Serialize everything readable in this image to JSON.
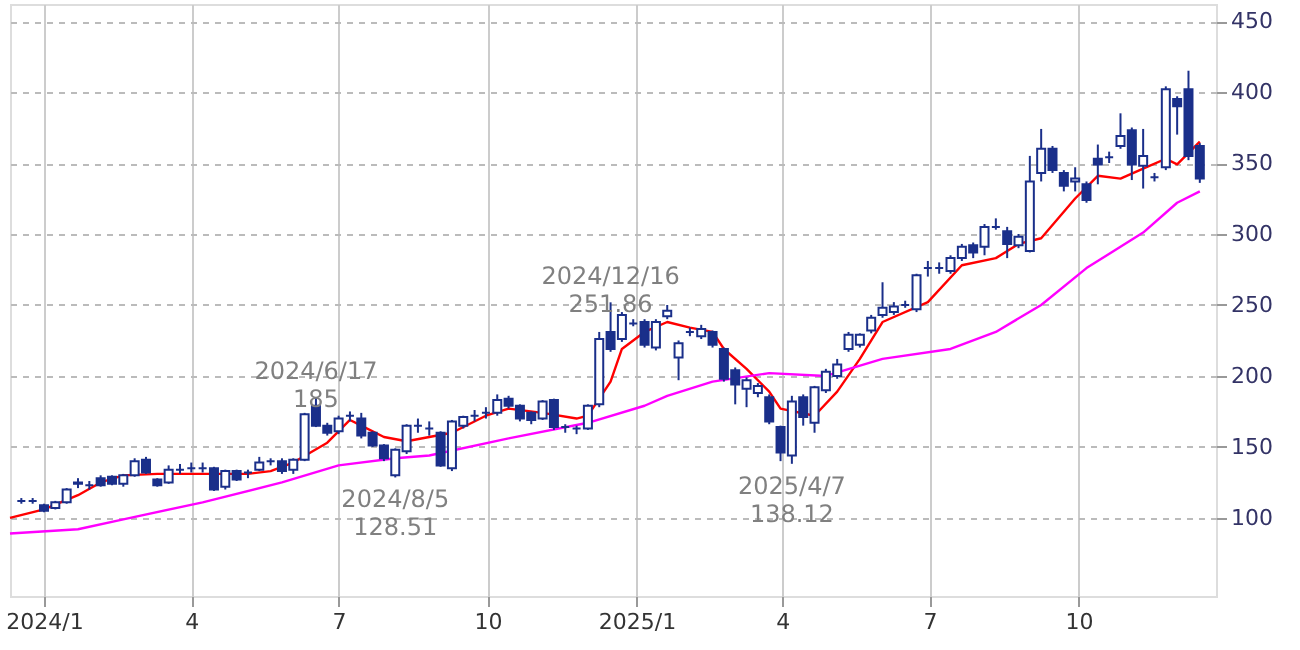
{
  "chart_data": {
    "type": "candlestick",
    "color": "#1a2f8a",
    "grid": true,
    "xlim": [
      "2023-12-11",
      "2025-12-25"
    ],
    "ylim": [
      45,
      462
    ],
    "xticks": [
      {
        "value": "2024-01-01",
        "label": "2024/1"
      },
      {
        "value": "2024-04-01",
        "label": "4"
      },
      {
        "value": "2024-07-01",
        "label": "7"
      },
      {
        "value": "2024-10-01",
        "label": "10"
      },
      {
        "value": "2025-01-01",
        "label": "2025/1"
      },
      {
        "value": "2025-04-01",
        "label": "4"
      },
      {
        "value": "2025-07-01",
        "label": "7"
      },
      {
        "value": "2025-10-01",
        "label": "10"
      }
    ],
    "yticks": [
      100,
      150,
      200,
      250,
      300,
      350,
      400,
      450
    ],
    "x": [
      "2023-12-18",
      "2023-12-25",
      "2024-01-01",
      "2024-01-08",
      "2024-01-15",
      "2024-01-22",
      "2024-01-29",
      "2024-02-05",
      "2024-02-12",
      "2024-02-19",
      "2024-02-26",
      "2024-03-04",
      "2024-03-11",
      "2024-03-18",
      "2024-03-25",
      "2024-04-01",
      "2024-04-08",
      "2024-04-15",
      "2024-04-22",
      "2024-04-29",
      "2024-05-06",
      "2024-05-13",
      "2024-05-20",
      "2024-05-27",
      "2024-06-03",
      "2024-06-10",
      "2024-06-17",
      "2024-06-24",
      "2024-07-01",
      "2024-07-08",
      "2024-07-15",
      "2024-07-22",
      "2024-07-29",
      "2024-08-05",
      "2024-08-12",
      "2024-08-19",
      "2024-08-26",
      "2024-09-02",
      "2024-09-09",
      "2024-09-16",
      "2024-09-23",
      "2024-09-30",
      "2024-10-07",
      "2024-10-14",
      "2024-10-21",
      "2024-10-28",
      "2024-11-04",
      "2024-11-11",
      "2024-11-18",
      "2024-11-25",
      "2024-12-02",
      "2024-12-09",
      "2024-12-16",
      "2024-12-23",
      "2024-12-30",
      "2025-01-06",
      "2025-01-13",
      "2025-01-20",
      "2025-01-27",
      "2025-02-03",
      "2025-02-10",
      "2025-02-17",
      "2025-02-24",
      "2025-03-03",
      "2025-03-10",
      "2025-03-17",
      "2025-03-24",
      "2025-03-31",
      "2025-04-07",
      "2025-04-14",
      "2025-04-21",
      "2025-04-28",
      "2025-05-05",
      "2025-05-12",
      "2025-05-19",
      "2025-05-26",
      "2025-06-02",
      "2025-06-09",
      "2025-06-16",
      "2025-06-23",
      "2025-06-30",
      "2025-07-07",
      "2025-07-14",
      "2025-07-21",
      "2025-07-28",
      "2025-08-04",
      "2025-08-11",
      "2025-08-18",
      "2025-08-25",
      "2025-09-01",
      "2025-09-08",
      "2025-09-15",
      "2025-09-22",
      "2025-09-29",
      "2025-10-06",
      "2025-10-13",
      "2025-10-20",
      "2025-10-27",
      "2025-11-03",
      "2025-11-10",
      "2025-11-17",
      "2025-11-24",
      "2025-12-01",
      "2025-12-08",
      "2025-12-15"
    ],
    "ohlc": [
      [
        112,
        114,
        110,
        112
      ],
      [
        112,
        114,
        110,
        112
      ],
      [
        109,
        110,
        104,
        105
      ],
      [
        107,
        112,
        106,
        111
      ],
      [
        111,
        121,
        110,
        120
      ],
      [
        124,
        128,
        121,
        125
      ],
      [
        123,
        126,
        120,
        123
      ],
      [
        128,
        130,
        122,
        123
      ],
      [
        129,
        130,
        123,
        124
      ],
      [
        124,
        131,
        122,
        130
      ],
      [
        130,
        142,
        129,
        140
      ],
      [
        141,
        143,
        131,
        132
      ],
      [
        127,
        128,
        122,
        123
      ],
      [
        125,
        137,
        124,
        134
      ],
      [
        134,
        138,
        131,
        134
      ],
      [
        135,
        139,
        132,
        135
      ],
      [
        135,
        139,
        132,
        135
      ],
      [
        135,
        136,
        119,
        120
      ],
      [
        122,
        134,
        120,
        133
      ],
      [
        133,
        134,
        126,
        127
      ],
      [
        132,
        134,
        128,
        132
      ],
      [
        134,
        143,
        133,
        139
      ],
      [
        140,
        142,
        137,
        140
      ],
      [
        140,
        142,
        131,
        133
      ],
      [
        134,
        142,
        131,
        141
      ],
      [
        141,
        174,
        140,
        173
      ],
      [
        179,
        185,
        164,
        165
      ],
      [
        165,
        167,
        158,
        160
      ],
      [
        161,
        172,
        159,
        170
      ],
      [
        172,
        175,
        168,
        172
      ],
      [
        170,
        174,
        156,
        158
      ],
      [
        160,
        161,
        150,
        151
      ],
      [
        151,
        152,
        140,
        142
      ],
      [
        130,
        149,
        128.51,
        148
      ],
      [
        147,
        166,
        145,
        165
      ],
      [
        165,
        170,
        160,
        165
      ],
      [
        163,
        168,
        158,
        163
      ],
      [
        160,
        161,
        136,
        137
      ],
      [
        135,
        169,
        133,
        168
      ],
      [
        165,
        172,
        163,
        171
      ],
      [
        172,
        176,
        168,
        172
      ],
      [
        174,
        178,
        170,
        174
      ],
      [
        174,
        187,
        172,
        183
      ],
      [
        184,
        186,
        177,
        179
      ],
      [
        179,
        180,
        168,
        170
      ],
      [
        174,
        175,
        166,
        169
      ],
      [
        170,
        183,
        169,
        182
      ],
      [
        183,
        184,
        162,
        164
      ],
      [
        164,
        166,
        160,
        164
      ],
      [
        163,
        165,
        159,
        163
      ],
      [
        163,
        180,
        162,
        179
      ],
      [
        180,
        231,
        178,
        226
      ],
      [
        231,
        251.86,
        217,
        219
      ],
      [
        226,
        245,
        224,
        243
      ],
      [
        237,
        240,
        235,
        237
      ],
      [
        238,
        240,
        220,
        222
      ],
      [
        220,
        240,
        218,
        238
      ],
      [
        242,
        250,
        240,
        246
      ],
      [
        213,
        225,
        197,
        223
      ],
      [
        231,
        234,
        228,
        231
      ],
      [
        228,
        236,
        226,
        233
      ],
      [
        231,
        232,
        220,
        222
      ],
      [
        219,
        220,
        196,
        198
      ],
      [
        204,
        206,
        180,
        194
      ],
      [
        191,
        199,
        178,
        197
      ],
      [
        188,
        195,
        185,
        193
      ],
      [
        185,
        187,
        166,
        168
      ],
      [
        164,
        165,
        140,
        146
      ],
      [
        144,
        186,
        138.12,
        182
      ],
      [
        185,
        187,
        165,
        171
      ],
      [
        167,
        193,
        160,
        192
      ],
      [
        190,
        205,
        188,
        203
      ],
      [
        200,
        212,
        198,
        208
      ],
      [
        219,
        231,
        217,
        229
      ],
      [
        222,
        230,
        220,
        229
      ],
      [
        232,
        243,
        230,
        241
      ],
      [
        243,
        266,
        241,
        248
      ],
      [
        245,
        252,
        243,
        249
      ],
      [
        250,
        253,
        248,
        250
      ],
      [
        247,
        272,
        245,
        271
      ],
      [
        276,
        281,
        270,
        276
      ],
      [
        276,
        280,
        272,
        276
      ],
      [
        274,
        285,
        272,
        283
      ],
      [
        283,
        293,
        281,
        291
      ],
      [
        292,
        294,
        283,
        287
      ],
      [
        291,
        307,
        285,
        305
      ],
      [
        305,
        311,
        303,
        305
      ],
      [
        302,
        305,
        283,
        293
      ],
      [
        292,
        300,
        290,
        298
      ],
      [
        288,
        355,
        287,
        337
      ],
      [
        343,
        374,
        337,
        360
      ],
      [
        360,
        362,
        343,
        345
      ],
      [
        343,
        345,
        330,
        334
      ],
      [
        337,
        347,
        330,
        339
      ],
      [
        335,
        337,
        322,
        324
      ],
      [
        353,
        363,
        335,
        349
      ],
      [
        354,
        358,
        350,
        354
      ],
      [
        362,
        385,
        360,
        369
      ],
      [
        373,
        375,
        338,
        349
      ],
      [
        348,
        374,
        332,
        355
      ],
      [
        340,
        343,
        337,
        340
      ],
      [
        347,
        404,
        345,
        402
      ],
      [
        395,
        397,
        370,
        390
      ],
      [
        402,
        415,
        352,
        355
      ],
      [
        362,
        364,
        336,
        339
      ]
    ],
    "series": [
      {
        "type": "line",
        "color": "#ff0000",
        "x": [
          "2023-12-11",
          "2024-01-01",
          "2024-01-22",
          "2024-02-05",
          "2024-02-19",
          "2024-03-11",
          "2024-04-08",
          "2024-05-06",
          "2024-05-20",
          "2024-06-03",
          "2024-06-24",
          "2024-07-08",
          "2024-07-15",
          "2024-07-29",
          "2024-08-12",
          "2024-08-26",
          "2024-09-09",
          "2024-09-30",
          "2024-10-14",
          "2024-11-04",
          "2024-11-25",
          "2024-12-02",
          "2024-12-16",
          "2024-12-23",
          "2025-01-06",
          "2025-01-20",
          "2025-02-03",
          "2025-02-17",
          "2025-02-24",
          "2025-03-10",
          "2025-03-24",
          "2025-03-31",
          "2025-04-21",
          "2025-05-05",
          "2025-05-19",
          "2025-06-02",
          "2025-06-30",
          "2025-07-21",
          "2025-08-11",
          "2025-08-25",
          "2025-09-08",
          "2025-09-29",
          "2025-10-13",
          "2025-10-27",
          "2025-11-10",
          "2025-11-24",
          "2025-12-01",
          "2025-12-15"
        ],
        "values": [
          100,
          106,
          116,
          125,
          130,
          131,
          131,
          131,
          133,
          139,
          153,
          169,
          165,
          157,
          154,
          157,
          160,
          172,
          177,
          174,
          170,
          172,
          196,
          219,
          231,
          238,
          234,
          231,
          219,
          205,
          189,
          177,
          172,
          189,
          212,
          238,
          252,
          278,
          283,
          293,
          297,
          325,
          341,
          339,
          346,
          353,
          349,
          365
        ]
      },
      {
        "type": "line",
        "color": "#ff00ff",
        "x": [
          "2023-12-11",
          "2024-01-22",
          "2024-02-19",
          "2024-04-08",
          "2024-05-27",
          "2024-07-01",
          "2024-08-05",
          "2024-08-26",
          "2024-10-14",
          "2024-12-02",
          "2025-01-06",
          "2025-01-20",
          "2025-02-17",
          "2025-03-24",
          "2025-04-28",
          "2025-06-02",
          "2025-07-14",
          "2025-08-11",
          "2025-09-08",
          "2025-10-06",
          "2025-11-10",
          "2025-12-01",
          "2025-12-15"
        ],
        "values": [
          89,
          92,
          99,
          111,
          125,
          137,
          142,
          144,
          156,
          167,
          179,
          186,
          196,
          202,
          200,
          212,
          219,
          231,
          250,
          276,
          301,
          322,
          330
        ]
      }
    ],
    "annotations": [
      {
        "text": "2024/6/17\n185",
        "x": "2024-06-17",
        "y": 185
      },
      {
        "text": "2024/8/5\n128.51",
        "x": "2024-08-05",
        "y": 128.51
      },
      {
        "text": "2024/12/16\n251.86",
        "x": "2024-12-16",
        "y": 251.86
      },
      {
        "text": "2025/4/7\n138.12",
        "x": "2025-04-07",
        "y": 138.12
      }
    ]
  }
}
